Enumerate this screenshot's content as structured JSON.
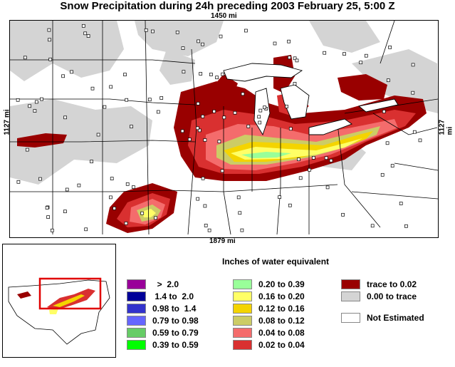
{
  "title": "Snow Precipitation during 24h preceding 2003 February 25, 5:00 Z",
  "map": {
    "scale_top": "1450 mi",
    "scale_bottom": "1879 mi",
    "scale_left": "1127 mi",
    "scale_right": "1127 mi",
    "colors": {
      "trace_to_002": "#990000",
      "no_snow_trace": "#d4d4d4",
      "c_002_004": "#d93030",
      "c_004_008": "#f46c6c",
      "c_008_012": "#cccc66",
      "c_012_016": "#f4d400",
      "c_016_020": "#ffff66",
      "c_020_039": "#99ff99"
    }
  },
  "legend": {
    "title": "Inches of water equivalent",
    "col1": [
      {
        "label": "  >  2.0",
        "color": "#990099"
      },
      {
        "label": " 1.4 to  2.0",
        "color": "#000099"
      },
      {
        "label": "0.98 to  1.4",
        "color": "#3333cc"
      },
      {
        "label": "0.79 to 0.98",
        "color": "#6666ff"
      },
      {
        "label": "0.59 to 0.79",
        "color": "#66cc66"
      },
      {
        "label": "0.39 to 0.59",
        "color": "#00ff00"
      }
    ],
    "col2": [
      {
        "label": "0.20 to 0.39",
        "color": "#99ff99"
      },
      {
        "label": "0.16 to 0.20",
        "color": "#ffff66"
      },
      {
        "label": "0.12 to 0.16",
        "color": "#f4d400"
      },
      {
        "label": "0.08 to 0.12",
        "color": "#cccc66"
      },
      {
        "label": "0.04 to 0.08",
        "color": "#f46c6c"
      },
      {
        "label": "0.02 to 0.04",
        "color": "#d93030"
      }
    ],
    "col3": [
      {
        "label": "trace to 0.02",
        "color": "#990000"
      },
      {
        "label": "0.00 to trace",
        "color": "#d4d4d4"
      },
      {
        "label": "Not Estimated",
        "color": "#ffffff"
      }
    ]
  }
}
